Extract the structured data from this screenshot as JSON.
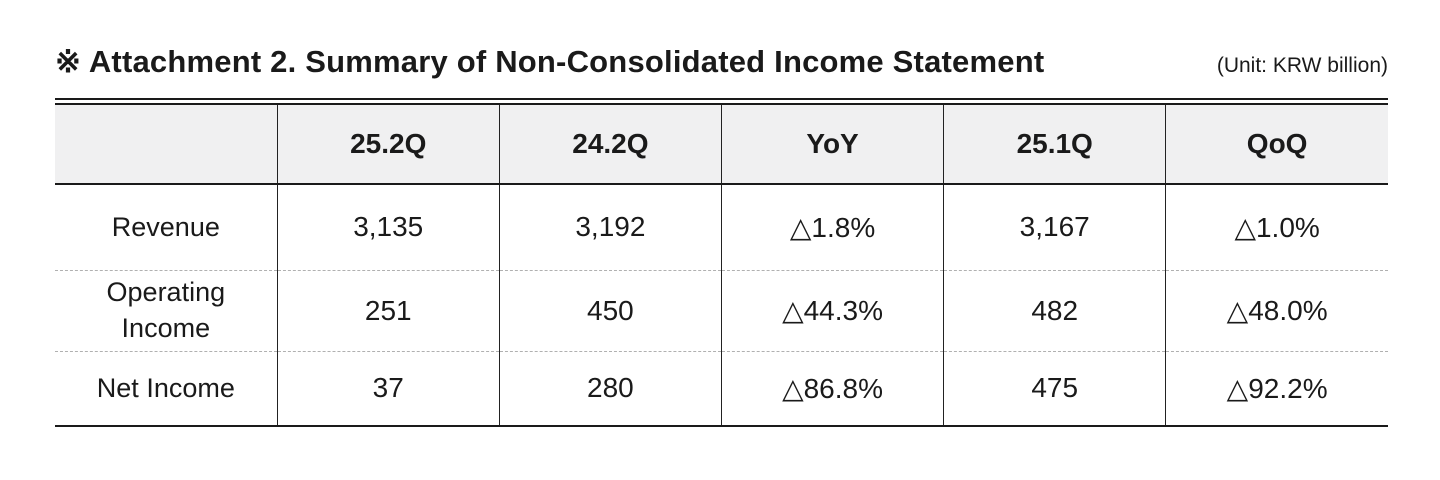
{
  "page": {
    "title": "※ Attachment 2. Summary of Non-Consolidated Income Statement",
    "unit_note": "(Unit: KRW billion)"
  },
  "table": {
    "columns": [
      "",
      "25.2Q",
      "24.2Q",
      "YoY",
      "25.1Q",
      "QoQ"
    ],
    "rows": [
      {
        "label": "Revenue",
        "values": [
          "3,135",
          "3,192",
          "△1.8%",
          "3,167",
          "△1.0%"
        ]
      },
      {
        "label": "Operating Income",
        "values": [
          "251",
          "450",
          "△44.3%",
          "482",
          "△48.0%"
        ]
      },
      {
        "label": "Net Income",
        "values": [
          "37",
          "280",
          "△86.8%",
          "475",
          "△92.2%"
        ]
      }
    ],
    "decline_marker": "△",
    "colors": {
      "header_background": "#f0f0f1",
      "rule_dark": "#1a1a1a",
      "dashed_separator": "#b0b0b0",
      "text": "#1a1a1a"
    }
  }
}
